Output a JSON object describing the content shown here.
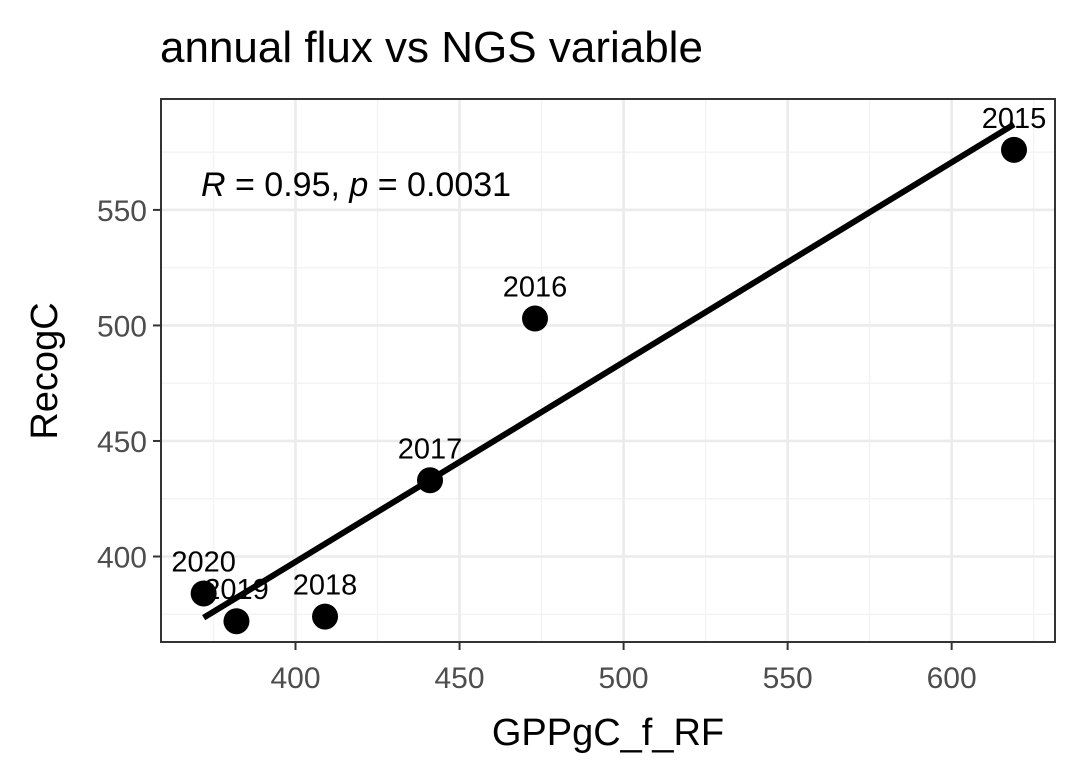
{
  "chart_data": {
    "type": "scatter",
    "title": "annual flux vs NGS variable",
    "xlabel": "GPPgC_f_RF",
    "ylabel": "RecogC",
    "xlim": [
      359,
      631.5
    ],
    "ylim": [
      363,
      598
    ],
    "x_ticks": [
      400,
      450,
      500,
      550,
      600
    ],
    "y_ticks": [
      400,
      450,
      500,
      550
    ],
    "grid": true,
    "points": [
      {
        "label": "2015",
        "x": 619,
        "y": 576
      },
      {
        "label": "2016",
        "x": 473,
        "y": 503
      },
      {
        "label": "2017",
        "x": 441,
        "y": 433
      },
      {
        "label": "2018",
        "x": 409,
        "y": 374
      },
      {
        "label": "2019",
        "x": 382,
        "y": 372
      },
      {
        "label": "2020",
        "x": 372,
        "y": 384
      }
    ],
    "fit_line": {
      "x": [
        372,
        619
      ],
      "y": [
        373.5,
        587
      ]
    },
    "annotation": {
      "r_symbol": "R",
      "r_text": " = 0.95, ",
      "p_symbol": "p",
      "p_text": " = 0.0031"
    }
  }
}
